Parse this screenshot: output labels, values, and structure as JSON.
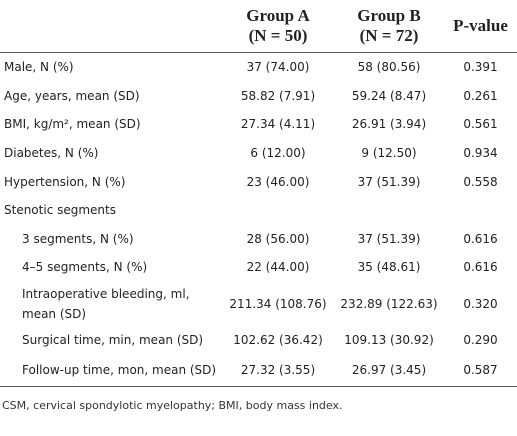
{
  "table": {
    "header": [
      [
        "Group A",
        "(N = 50)"
      ],
      [
        "Group B",
        "(N = 72)"
      ],
      [
        "P-value"
      ]
    ],
    "rows": [
      [
        "Male, N (%)",
        "37 (74.00)",
        "58 (80.56)",
        "0.391"
      ],
      [
        "Age, years, mean (SD)",
        "58.82 (7.91)",
        "59.24 (8.47)",
        "0.261"
      ],
      [
        "BMI, kg/m², mean (SD)",
        "27.34 (4.11)",
        "26.91 (3.94)",
        "0.561"
      ],
      [
        "Diabetes, N (%)",
        "6 (12.00)",
        "9 (12.50)",
        "0.934"
      ],
      [
        "Hypertension, N (%)",
        "23 (46.00)",
        "37 (51.39)",
        "0.558"
      ],
      [
        "Stenotic segments"
      ],
      [
        "3 segments, N (%)",
        "28 (56.00)",
        "37 (51.39)",
        "0.616"
      ],
      [
        "4–5 segments, N (%)",
        "22 (44.00)",
        "35 (48.61)",
        "0.616"
      ],
      [
        [
          "Intraoperative bleeding, ml,",
          "mean (SD)"
        ],
        "211.34 (108.76)",
        "232.89 (122.63)",
        "0.320"
      ],
      [
        "Surgical time, min, mean (SD)",
        "102.62 (36.42)",
        "109.13 (30.92)",
        "0.290"
      ],
      [
        "Follow-up time, mon, mean (SD)",
        "27.32 (3.55)",
        "26.97 (3.45)",
        "0.587"
      ]
    ],
    "footnote": "CSM, cervical spondylotic myelopathy; BMI, body mass index."
  }
}
